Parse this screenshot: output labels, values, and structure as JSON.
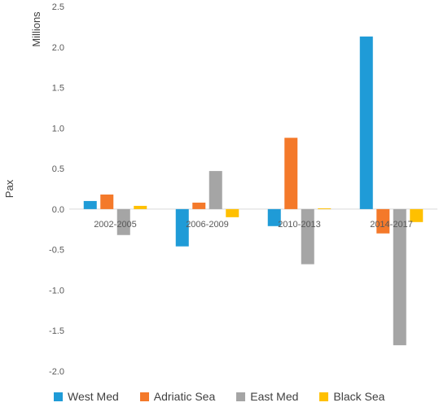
{
  "chart_data": {
    "type": "bar",
    "title": "",
    "unit_label": "Millions",
    "ylabel": "Pax",
    "xlabel": "",
    "ylim": [
      -2.0,
      2.5
    ],
    "yticks": [
      -2.0,
      -1.5,
      -1.0,
      -0.5,
      0.0,
      0.5,
      1.0,
      1.5,
      2.0,
      2.5
    ],
    "ytick_labels": [
      "-2.0",
      "-1.5",
      "-1.0",
      "-0.5",
      "0.0",
      "0.5",
      "1.0",
      "1.5",
      "2.0",
      "2.5"
    ],
    "categories": [
      "2002-2005",
      "2006-2009",
      "2010-2013",
      "2014-2017"
    ],
    "series": [
      {
        "name": "West Med",
        "color": "#1F9BD7",
        "values": [
          0.1,
          -0.46,
          -0.21,
          2.13
        ]
      },
      {
        "name": "Adriatic Sea",
        "color": "#F4792A",
        "values": [
          0.18,
          0.08,
          0.88,
          -0.3
        ]
      },
      {
        "name": "East Med",
        "color": "#A5A5A5",
        "values": [
          -0.32,
          0.47,
          -0.68,
          -1.68
        ]
      },
      {
        "name": "Black Sea",
        "color": "#FFC000",
        "values": [
          0.04,
          -0.1,
          0.01,
          -0.16
        ]
      }
    ],
    "grid": false,
    "legend_position": "bottom"
  }
}
